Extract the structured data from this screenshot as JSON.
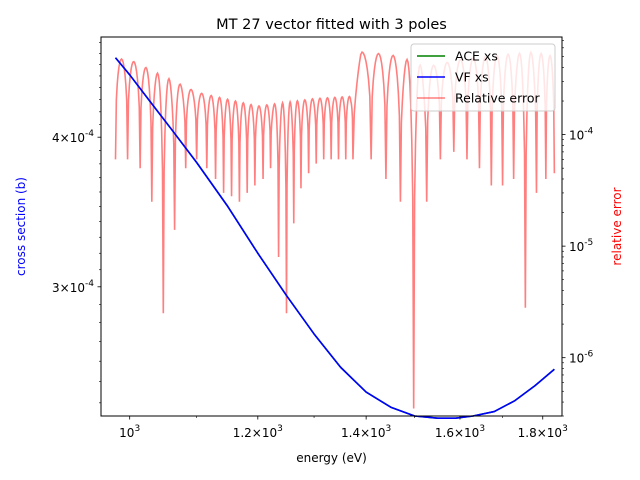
{
  "chart_data": {
    "type": "line",
    "title": "MT 27 vector fitted with 3 poles",
    "xlabel": "energy (eV)",
    "ylabel": "cross section (b)",
    "y2label": "relative error",
    "xscale": "log",
    "yscale": "log",
    "y2scale": "log",
    "xlim": [
      960,
      1850
    ],
    "ylim": [
      0.000234,
      0.000485
    ],
    "y2lim": [
      3e-07,
      0.00075
    ],
    "x_ticks": [
      {
        "value": 1000,
        "label": "10^3"
      },
      {
        "value": 1200,
        "label": "1.2×10^3"
      },
      {
        "value": 1400,
        "label": "1.4×10^3"
      },
      {
        "value": 1600,
        "label": "1.6×10^3"
      },
      {
        "value": 1800,
        "label": "1.8×10^3"
      }
    ],
    "y_ticks": [
      {
        "value": 0.0003,
        "label": "3×10^-4"
      },
      {
        "value": 0.0004,
        "label": "4×10^-4"
      }
    ],
    "y2_ticks": [
      {
        "value": 1e-06,
        "label": "10^-6"
      },
      {
        "value": 1e-05,
        "label": "10^-5"
      },
      {
        "value": 0.0001,
        "label": "10^-4"
      }
    ],
    "legend": {
      "placement": "top-right",
      "entries": [
        {
          "label": "ACE xs",
          "color": "#008000"
        },
        {
          "label": "VF xs",
          "color": "#0000ff"
        },
        {
          "label": "Relative error",
          "color": "#ff0000"
        }
      ]
    },
    "series": [
      {
        "name": "ACE xs",
        "axis": "left",
        "color": "#008000",
        "x": [
          980,
          1000,
          1030,
          1060,
          1100,
          1150,
          1200,
          1250,
          1300,
          1350,
          1400,
          1450,
          1500,
          1550,
          1590,
          1630,
          1680,
          1730,
          1780,
          1830
        ],
        "y": [
          0.000466,
          0.000451,
          0.000428,
          0.000407,
          0.000381,
          0.00035,
          0.00032,
          0.000295,
          0.000274,
          0.000257,
          0.000245,
          0.000238,
          0.000234,
          0.000233,
          0.000233,
          0.000234,
          0.000236,
          0.000241,
          0.000248,
          0.000256
        ]
      },
      {
        "name": "VF xs",
        "axis": "left",
        "color": "#0000ff",
        "x": [
          980,
          1000,
          1030,
          1060,
          1100,
          1150,
          1200,
          1250,
          1300,
          1350,
          1400,
          1450,
          1500,
          1550,
          1590,
          1630,
          1680,
          1730,
          1780,
          1830
        ],
        "y": [
          0.000466,
          0.000451,
          0.000428,
          0.000407,
          0.000381,
          0.00035,
          0.00032,
          0.000295,
          0.000274,
          0.000257,
          0.000245,
          0.000238,
          0.000234,
          0.000233,
          0.000233,
          0.000234,
          0.000236,
          0.000241,
          0.000248,
          0.000256
        ]
      },
      {
        "name": "Relative error",
        "axis": "right",
        "color": "#ff0000",
        "oscillating": true,
        "x_start": 980,
        "x_end": 1830,
        "envelope_x": [
          980,
          1000,
          1100,
          1200,
          1300,
          1370,
          1390,
          1450,
          1500,
          1520,
          1600,
          1700,
          1780,
          1830
        ],
        "envelope_y": [
          0.00048,
          0.00047,
          0.00024,
          0.00018,
          0.00021,
          0.00022,
          0.00055,
          0.00052,
          0.00045,
          0.0004,
          0.00047,
          0.00052,
          0.00055,
          0.0005
        ],
        "dips": [
          {
            "x": 980,
            "y": 6e-05
          },
          {
            "x": 997,
            "y": 6e-05
          },
          {
            "x": 1015,
            "y": 5e-05
          },
          {
            "x": 1032,
            "y": 2.5e-05
          },
          {
            "x": 1049,
            "y": 2.5e-06
          },
          {
            "x": 1066,
            "y": 1.4e-05
          },
          {
            "x": 1083,
            "y": 5e-05
          },
          {
            "x": 1100,
            "y": 6e-05
          },
          {
            "x": 1116,
            "y": 5e-05
          },
          {
            "x": 1130,
            "y": 4e-05
          },
          {
            "x": 1143,
            "y": 3e-05
          },
          {
            "x": 1156,
            "y": 2.8e-05
          },
          {
            "x": 1169,
            "y": 2.5e-05
          },
          {
            "x": 1182,
            "y": 3e-05
          },
          {
            "x": 1195,
            "y": 3.5e-05
          },
          {
            "x": 1209,
            "y": 4e-05
          },
          {
            "x": 1222,
            "y": 5e-05
          },
          {
            "x": 1236,
            "y": 8e-06
          },
          {
            "x": 1250,
            "y": 2.5e-06
          },
          {
            "x": 1263,
            "y": 1.6e-05
          },
          {
            "x": 1276,
            "y": 3.3e-05
          },
          {
            "x": 1290,
            "y": 4.5e-05
          },
          {
            "x": 1304,
            "y": 5.5e-05
          },
          {
            "x": 1318,
            "y": 6e-05
          },
          {
            "x": 1332,
            "y": 6e-05
          },
          {
            "x": 1346,
            "y": 6e-05
          },
          {
            "x": 1360,
            "y": 6e-05
          },
          {
            "x": 1374,
            "y": 6e-05
          },
          {
            "x": 1410,
            "y": 6e-05
          },
          {
            "x": 1440,
            "y": 4e-05
          },
          {
            "x": 1470,
            "y": 2.5e-05
          },
          {
            "x": 1498,
            "y": 3.5e-07
          },
          {
            "x": 1526,
            "y": 2.5e-05
          },
          {
            "x": 1556,
            "y": 6e-05
          },
          {
            "x": 1586,
            "y": 7e-05
          },
          {
            "x": 1616,
            "y": 6e-05
          },
          {
            "x": 1645,
            "y": 5e-05
          },
          {
            "x": 1673,
            "y": 3.5e-05
          },
          {
            "x": 1700,
            "y": 3.5e-05
          },
          {
            "x": 1727,
            "y": 4e-05
          },
          {
            "x": 1756,
            "y": 2.8e-06
          },
          {
            "x": 1784,
            "y": 3e-05
          },
          {
            "x": 1808,
            "y": 4e-05
          },
          {
            "x": 1830,
            "y": 4.5e-05
          }
        ]
      }
    ]
  }
}
